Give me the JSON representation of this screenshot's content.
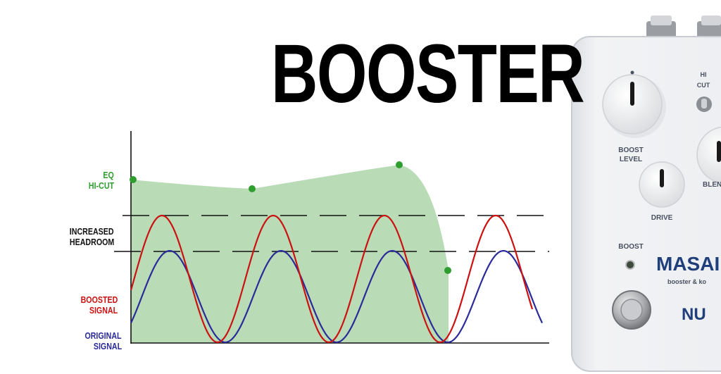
{
  "title": "BOOSTER",
  "labels": {
    "eq_line1": "EQ",
    "eq_line2": "HI-CUT",
    "headroom_line1": "INCREASED",
    "headroom_line2": "HEADROOM",
    "boosted_line1": "BOOSTED",
    "boosted_line2": "SIGNAL",
    "original_line1": "ORIGINAL",
    "original_line2": "SIGNAL"
  },
  "pedal": {
    "hi_cut_line1": "HI",
    "hi_cut_line2": "CUT",
    "boost_level_line1": "BOOST",
    "boost_level_line2": "LEVEL",
    "blend": "BLEN",
    "drive": "DRIVE",
    "boost": "BOOST",
    "brand": "MASAI",
    "subtitle": "booster & ko",
    "maker": "NU"
  },
  "colors": {
    "eq": "#2e9e2e",
    "eq_fill": "#b9dcb6",
    "boosted": "#cc1111",
    "original": "#2a2a9a",
    "headroom": "#111111"
  }
}
